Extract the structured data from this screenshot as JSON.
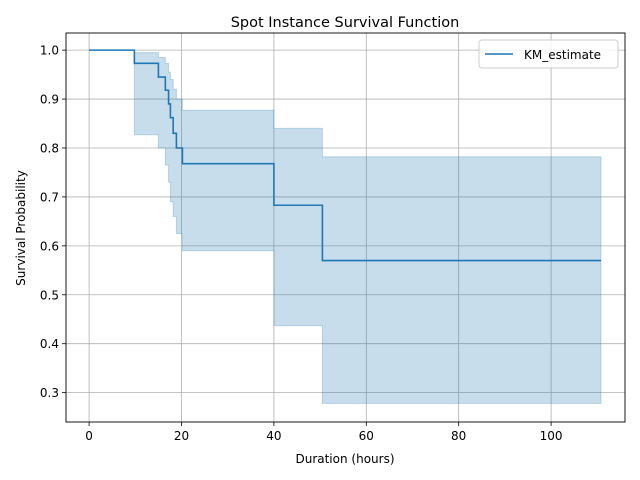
{
  "chart_data": {
    "type": "line",
    "title": "Spot Instance Survival Function",
    "xlabel": "Duration (hours)",
    "ylabel": "Survival Probability",
    "xlim": [
      -5,
      116
    ],
    "ylim": [
      0.24,
      1.035
    ],
    "xticks": [
      0,
      20,
      40,
      60,
      80,
      100
    ],
    "yticks": [
      0.3,
      0.4,
      0.5,
      0.6,
      0.7,
      0.8,
      0.9,
      1.0
    ],
    "ytick_labels": [
      "0.3",
      "0.4",
      "0.5",
      "0.6",
      "0.7",
      "0.8",
      "0.9",
      "1.0"
    ],
    "grid": true,
    "legend": {
      "position": "top-right"
    },
    "series": [
      {
        "name": "KM_estimate",
        "color": "#1f77b4",
        "step": "post",
        "x": [
          0,
          9.8,
          15.0,
          16.5,
          17.2,
          17.6,
          18.2,
          18.9,
          20.2,
          40.0,
          50.5,
          110.8
        ],
        "y": [
          1.0,
          0.973,
          0.945,
          0.918,
          0.89,
          0.862,
          0.83,
          0.8,
          0.768,
          0.683,
          0.57,
          0.57
        ],
        "ci_color": "#1f77b4",
        "ci_opacity": 0.25,
        "ci_lower": [
          1.0,
          0.827,
          0.8,
          0.765,
          0.73,
          0.69,
          0.66,
          0.625,
          0.59,
          0.437,
          0.278,
          0.278
        ],
        "ci_upper": [
          1.0,
          0.995,
          0.985,
          0.973,
          0.955,
          0.94,
          0.92,
          0.9,
          0.877,
          0.84,
          0.782,
          0.782
        ]
      }
    ]
  }
}
